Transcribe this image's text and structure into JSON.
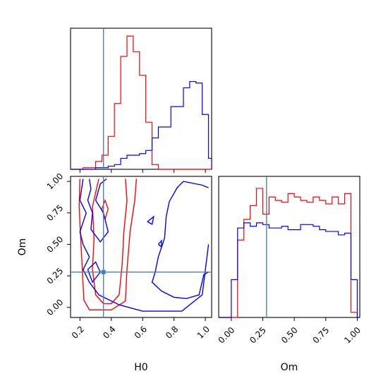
{
  "chart_data": {
    "type": "corner",
    "parameters": [
      "H0",
      "Om"
    ],
    "truths": {
      "H0": 0.35,
      "Om": 0.28
    },
    "truth_color": "#4682b4",
    "series": [
      {
        "color": "#ff0000"
      },
      {
        "color": "#0000ff"
      }
    ],
    "panels": [
      {
        "name": "H0-marginal",
        "type": "histogram",
        "param": "H0",
        "xlim": [
          0.14,
          1.04
        ],
        "bin_edges": [
          0.14,
          0.18,
          0.22,
          0.26,
          0.3,
          0.34,
          0.38,
          0.42,
          0.46,
          0.5,
          0.54,
          0.58,
          0.62,
          0.66,
          0.7,
          0.74,
          0.78,
          0.82,
          0.86,
          0.9,
          0.94,
          0.98,
          1.02,
          1.04
        ],
        "counts": [
          {
            "series": 0,
            "values": [
              0,
              0,
              1,
              1,
              5,
              9,
              21,
              42,
              72,
              85,
              75,
              60,
              30,
              3,
              0,
              0,
              0,
              0,
              0,
              0,
              0,
              0,
              0
            ]
          },
          {
            "series": 1,
            "values": [
              0,
              0,
              0,
              0,
              1,
              1,
              2,
              3,
              7,
              9,
              9,
              10,
              12,
              20,
              27,
              27,
              40,
              40,
              52,
              56,
              55,
              35,
              7
            ]
          }
        ]
      },
      {
        "name": "Om-marginal",
        "type": "histogram",
        "param": "Om",
        "xlim": [
          -0.1,
          1.02
        ],
        "bin_edges": [
          -0.1,
          -0.05,
          0.0,
          0.05,
          0.1,
          0.15,
          0.2,
          0.25,
          0.3,
          0.35,
          0.4,
          0.45,
          0.5,
          0.55,
          0.6,
          0.65,
          0.7,
          0.75,
          0.8,
          0.85,
          0.9,
          0.95,
          1.0,
          1.02
        ],
        "counts": [
          {
            "series": 0,
            "values": [
              0,
              0,
              0,
              45,
              57,
              65,
              75,
              60,
              70,
              68,
              67,
              72,
              70,
              68,
              67,
              70,
              68,
              66,
              70,
              66,
              72,
              3,
              0
            ]
          },
          {
            "series": 1,
            "values": [
              0,
              0,
              22,
              52,
              55,
              53,
              55,
              54,
              52,
              52,
              53,
              51,
              51,
              54,
              54,
              53,
              51,
              50,
              50,
              48,
              49,
              22,
              0
            ]
          }
        ]
      },
      {
        "name": "H0-Om-contour",
        "type": "contour",
        "xparam": "H0",
        "yparam": "Om",
        "xlim": [
          0.14,
          1.04
        ],
        "ylim": [
          -0.08,
          1.04
        ],
        "contours": [
          {
            "series": 0,
            "points": [
              [
                0.2,
                1.02
              ],
              [
                0.195,
                0.8
              ],
              [
                0.205,
                0.55
              ],
              [
                0.215,
                0.3
              ],
              [
                0.225,
                0.06
              ],
              [
                0.26,
                -0.02
              ],
              [
                0.4,
                -0.02
              ],
              [
                0.49,
                0.05
              ],
              [
                0.5,
                0.3
              ],
              [
                0.52,
                0.6
              ],
              [
                0.55,
                0.85
              ],
              [
                0.56,
                1.02
              ]
            ]
          },
          {
            "series": 0,
            "points": [
              [
                0.32,
                1.02
              ],
              [
                0.28,
                0.8
              ],
              [
                0.29,
                0.55
              ],
              [
                0.28,
                0.3
              ],
              [
                0.3,
                0.1
              ],
              [
                0.35,
                0.03
              ],
              [
                0.4,
                0.03
              ],
              [
                0.45,
                0.1
              ],
              [
                0.47,
                0.35
              ],
              [
                0.48,
                0.6
              ],
              [
                0.5,
                0.85
              ],
              [
                0.49,
                1.02
              ]
            ]
          },
          {
            "series": 0,
            "points": [
              [
                0.34,
                0.78
              ],
              [
                0.36,
                0.7
              ],
              [
                0.38,
                0.78
              ],
              [
                0.36,
                0.85
              ],
              [
                0.34,
                0.78
              ]
            ]
          },
          {
            "series": 1,
            "points": [
              [
                0.22,
                1.02
              ],
              [
                0.2,
                0.85
              ],
              [
                0.24,
                0.75
              ],
              [
                0.2,
                0.6
              ],
              [
                0.22,
                0.5
              ],
              [
                0.26,
                0.4
              ],
              [
                0.22,
                0.3
              ],
              [
                0.26,
                0.2
              ],
              [
                0.32,
                0.1
              ],
              [
                0.45,
                0.02
              ],
              [
                0.6,
                -0.03
              ],
              [
                0.85,
                -0.03
              ],
              [
                0.98,
                0.1
              ],
              [
                1.02,
                0.5
              ]
            ]
          },
          {
            "series": 1,
            "points": [
              [
                1.02,
                0.95
              ],
              [
                0.98,
                0.97
              ],
              [
                0.86,
                1.0
              ],
              [
                0.82,
                0.95
              ],
              [
                0.77,
                0.84
              ],
              [
                0.75,
                0.72
              ],
              [
                0.74,
                0.55
              ],
              [
                0.7,
                0.4
              ],
              [
                0.68,
                0.28
              ],
              [
                0.66,
                0.2
              ],
              [
                0.72,
                0.13
              ],
              [
                0.8,
                0.08
              ],
              [
                0.88,
                0.07
              ],
              [
                0.96,
                0.1
              ],
              [
                0.99,
                0.26
              ],
              [
                1.02,
                0.28
              ]
            ]
          },
          {
            "series": 1,
            "points": [
              [
                0.26,
                1.02
              ],
              [
                0.27,
                0.94
              ],
              [
                0.25,
                0.85
              ],
              [
                0.28,
                0.75
              ],
              [
                0.27,
                0.62
              ],
              [
                0.33,
                0.52
              ],
              [
                0.38,
                0.6
              ],
              [
                0.35,
                0.75
              ],
              [
                0.3,
                0.85
              ],
              [
                0.33,
                0.98
              ],
              [
                0.37,
                1.02
              ]
            ]
          },
          {
            "series": 1,
            "points": [
              [
                0.25,
                0.3
              ],
              [
                0.3,
                0.36
              ],
              [
                0.33,
                0.28
              ],
              [
                0.28,
                0.2
              ],
              [
                0.25,
                0.3
              ]
            ]
          },
          {
            "series": 1,
            "points": [
              [
                0.63,
                0.68
              ],
              [
                0.67,
                0.72
              ],
              [
                0.66,
                0.66
              ],
              [
                0.63,
                0.68
              ]
            ]
          },
          {
            "series": 1,
            "points": [
              [
                0.7,
                0.5
              ],
              [
                0.72,
                0.53
              ],
              [
                0.72,
                0.48
              ],
              [
                0.7,
                0.5
              ]
            ]
          }
        ]
      }
    ],
    "tick_labels": {
      "H0": [
        "0.2",
        "0.4",
        "0.6",
        "0.8",
        "1.0"
      ],
      "Om": [
        "0.00",
        "0.25",
        "0.50",
        "0.75",
        "1.00"
      ]
    },
    "xlabel_bottom_left": "H0",
    "xlabel_bottom_right": "Om",
    "ylabel_left": "Om"
  }
}
